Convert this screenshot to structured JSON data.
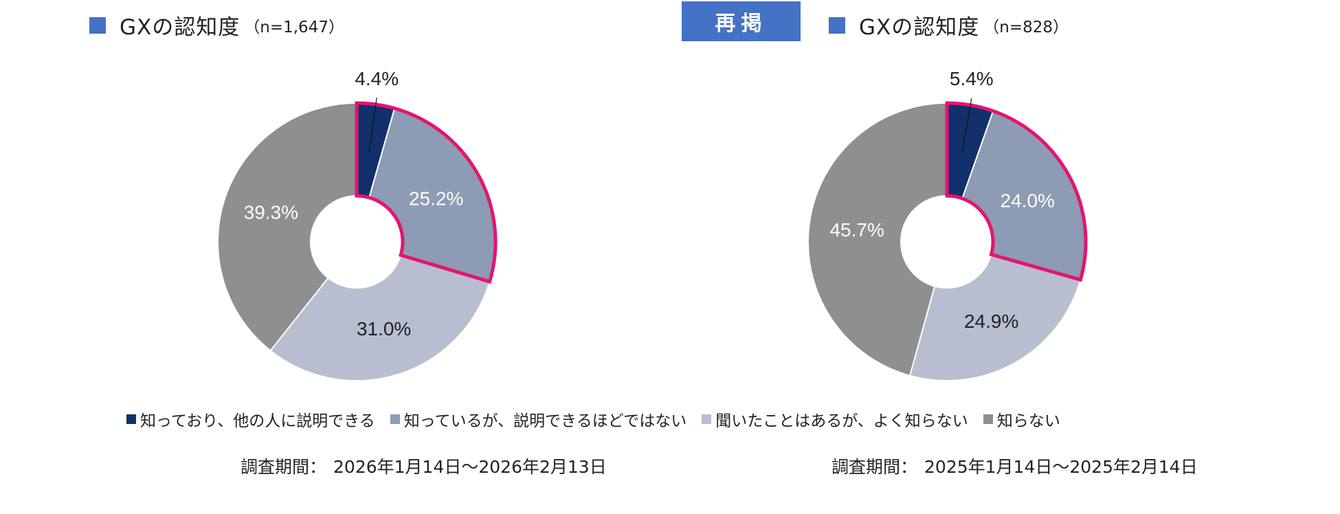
{
  "colors": {
    "title_square": "#4472C4",
    "badge_bg": "#4472C4",
    "highlight_outline": "#E6146E",
    "leader_line": "#111111"
  },
  "left_title": {
    "main": "GXの認知度",
    "n": "（n=1,647）"
  },
  "right_title": {
    "main": "GXの認知度",
    "n": "（n=828）"
  },
  "repost_badge": "再掲",
  "legend": [
    {
      "label": "知っており、他の人に説明できる",
      "color": "#12306B"
    },
    {
      "label": "知っているが、説明できるほどではない",
      "color": "#8D9BB5"
    },
    {
      "label": "聞いたことはあるが、よく知らない",
      "color": "#B8BDD0"
    },
    {
      "label": "知らない",
      "color": "#8F8E91"
    }
  ],
  "chart_data": [
    {
      "type": "pie",
      "donut": true,
      "highlighted_categories": [
        "知っており、他の人に説明できる",
        "知っているが、説明できるほどではない"
      ],
      "categories": [
        "知っており、他の人に説明できる",
        "知っているが、説明できるほどではない",
        "聞いたことはあるが、よく知らない",
        "知らない"
      ],
      "values": [
        4.4,
        25.2,
        31.0,
        39.3
      ],
      "labels": [
        "4.4%",
        "25.2%",
        "31.0%",
        "39.3%"
      ],
      "label_colors": [
        "#222222",
        "#ffffff",
        "#222222",
        "#ffffff"
      ]
    },
    {
      "type": "pie",
      "donut": true,
      "highlighted_categories": [
        "知っており、他の人に説明できる",
        "知っているが、説明できるほどではない"
      ],
      "categories": [
        "知っており、他の人に説明できる",
        "知っているが、説明できるほどではない",
        "聞いたことはあるが、よく知らない",
        "知らない"
      ],
      "values": [
        5.4,
        24.0,
        24.9,
        45.7
      ],
      "labels": [
        "5.4%",
        "24.0%",
        "24.9%",
        "45.7%"
      ],
      "label_colors": [
        "#222222",
        "#ffffff",
        "#222222",
        "#ffffff"
      ]
    }
  ],
  "survey_period_left": {
    "label": "調査期間：",
    "value": "2026年1月14日～2026年2月13日"
  },
  "survey_period_right": {
    "label": "調査期間：",
    "value": "2025年1月14日～2025年2月14日"
  }
}
